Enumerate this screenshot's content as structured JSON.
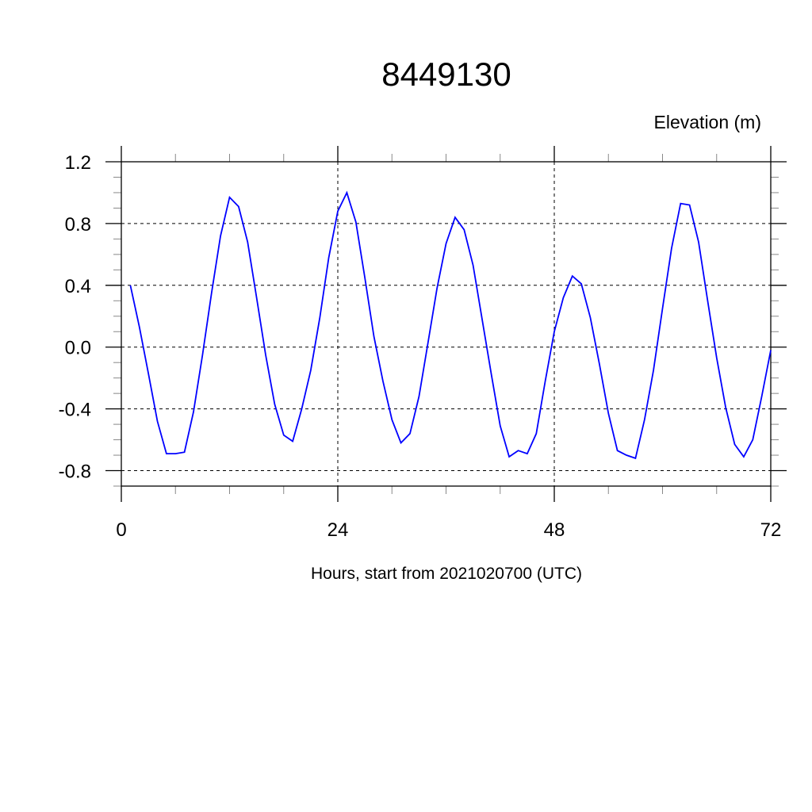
{
  "chart_data": {
    "type": "line",
    "title": "8449130",
    "ylabel": "Elevation (m)",
    "xlabel": "Hours, start from 2021020700 (UTC)",
    "xlim": [
      0,
      72
    ],
    "ylim": [
      -0.9,
      1.2
    ],
    "x_ticks": [
      0,
      24,
      48,
      72
    ],
    "x_tick_labels": [
      "0",
      "24",
      "48",
      "72"
    ],
    "y_ticks": [
      1.2,
      0.8,
      0.4,
      0.0,
      -0.4,
      -0.8
    ],
    "y_tick_labels": [
      "1.2",
      "0.8",
      "0.4",
      "0.0",
      "-0.4",
      "-0.8"
    ],
    "grid": true,
    "line_color": "#0000ff",
    "series": [
      {
        "x": [
          1,
          2,
          3,
          4,
          5,
          6,
          7,
          8,
          9,
          10,
          11,
          12,
          13,
          14,
          15,
          16,
          17,
          18,
          19,
          20,
          21,
          22,
          23,
          24,
          25,
          26,
          27,
          28,
          29,
          30,
          31,
          32,
          33,
          34,
          35,
          36,
          37,
          38,
          39,
          40,
          41,
          42,
          43,
          44,
          45,
          46,
          47,
          48,
          49,
          50,
          51,
          52,
          53,
          54,
          55,
          56,
          57,
          58,
          59,
          60,
          61,
          62,
          63,
          64,
          65,
          66,
          67,
          68,
          69,
          70,
          71,
          72
        ],
        "values": [
          0.4,
          0.13,
          -0.17,
          -0.48,
          -0.69,
          -0.69,
          -0.68,
          -0.42,
          -0.05,
          0.35,
          0.72,
          0.97,
          0.91,
          0.68,
          0.32,
          -0.05,
          -0.37,
          -0.57,
          -0.61,
          -0.4,
          -0.15,
          0.19,
          0.58,
          0.88,
          1.0,
          0.81,
          0.45,
          0.07,
          -0.22,
          -0.47,
          -0.62,
          -0.56,
          -0.32,
          0.03,
          0.38,
          0.67,
          0.84,
          0.76,
          0.53,
          0.18,
          -0.17,
          -0.51,
          -0.71,
          -0.67,
          -0.69,
          -0.56,
          -0.22,
          0.1,
          0.32,
          0.46,
          0.41,
          0.19,
          -0.11,
          -0.43,
          -0.67,
          -0.7,
          -0.72,
          -0.47,
          -0.15,
          0.25,
          0.64,
          0.93,
          0.92,
          0.68,
          0.3,
          -0.07,
          -0.39,
          -0.63,
          -0.71,
          -0.6,
          -0.32,
          -0.02
        ]
      }
    ]
  }
}
